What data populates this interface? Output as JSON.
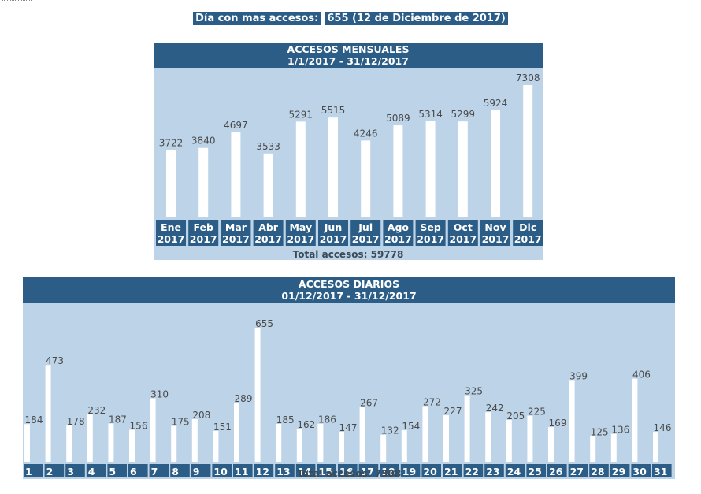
{
  "banner": {
    "label": "Día con mas accesos:",
    "value": "655 (12 de Diciembre de 2017)"
  },
  "chart_data": [
    {
      "type": "bar",
      "title": "ACCESOS MENSUALES",
      "subtitle": "1/1/2017 - 31/12/2017",
      "categories": [
        "Ene",
        "Feb",
        "Mar",
        "Abr",
        "May",
        "Jun",
        "Jul",
        "Ago",
        "Sep",
        "Oct",
        "Nov",
        "Dic"
      ],
      "category_sublabel": "2017",
      "values": [
        3722,
        3840,
        4697,
        3533,
        5291,
        5515,
        4246,
        5089,
        5314,
        5299,
        5924,
        7308
      ],
      "total_label": "Total accesos:",
      "total_value": "59778",
      "colors": {
        "bar": "#ffffff",
        "panel": "#bcd3e8",
        "header": "#2b5d86"
      }
    },
    {
      "type": "bar",
      "title": "ACCESOS DIARIOS",
      "subtitle": "01/12/2017 - 31/12/2017",
      "categories": [
        "1",
        "2",
        "3",
        "4",
        "5",
        "6",
        "7",
        "8",
        "9",
        "10",
        "11",
        "12",
        "13",
        "14",
        "15",
        "16",
        "17",
        "18",
        "19",
        "20",
        "21",
        "22",
        "23",
        "24",
        "25",
        "26",
        "27",
        "28",
        "29",
        "30",
        "31"
      ],
      "values": [
        184,
        473,
        178,
        232,
        187,
        156,
        310,
        175,
        208,
        151,
        289,
        655,
        185,
        162,
        186,
        147,
        267,
        132,
        154,
        272,
        227,
        325,
        242,
        205,
        225,
        169,
        399,
        125,
        136,
        406,
        146
      ],
      "total_label": "Total accesos:",
      "total_value": "7308",
      "colors": {
        "bar": "#ffffff",
        "panel": "#bcd3e8",
        "header": "#2b5d86"
      }
    }
  ]
}
